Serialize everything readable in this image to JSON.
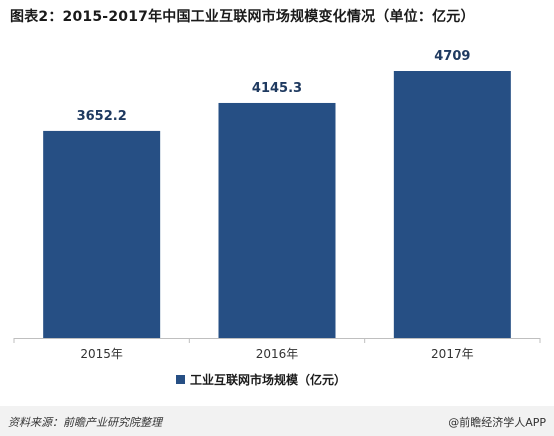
{
  "title": "图表2：2015-2017年中国工业互联网市场规模变化情况（单位：亿元）",
  "chart_data": {
    "type": "bar",
    "categories": [
      "2015年",
      "2016年",
      "2017年"
    ],
    "series": [
      {
        "name": "工业互联网市场规模（亿元）",
        "values": [
          3652.2,
          4145.3,
          4709
        ],
        "labels": [
          "3652.2",
          "4145.3",
          "4709"
        ]
      }
    ],
    "ylim": [
      0,
      4709
    ],
    "bar_color": "#264f84",
    "legend": "bottom-center",
    "grid": false
  },
  "footer": {
    "source": "资料来源：前瞻产业研究院整理",
    "brand": "@前瞻经济学人APP"
  }
}
